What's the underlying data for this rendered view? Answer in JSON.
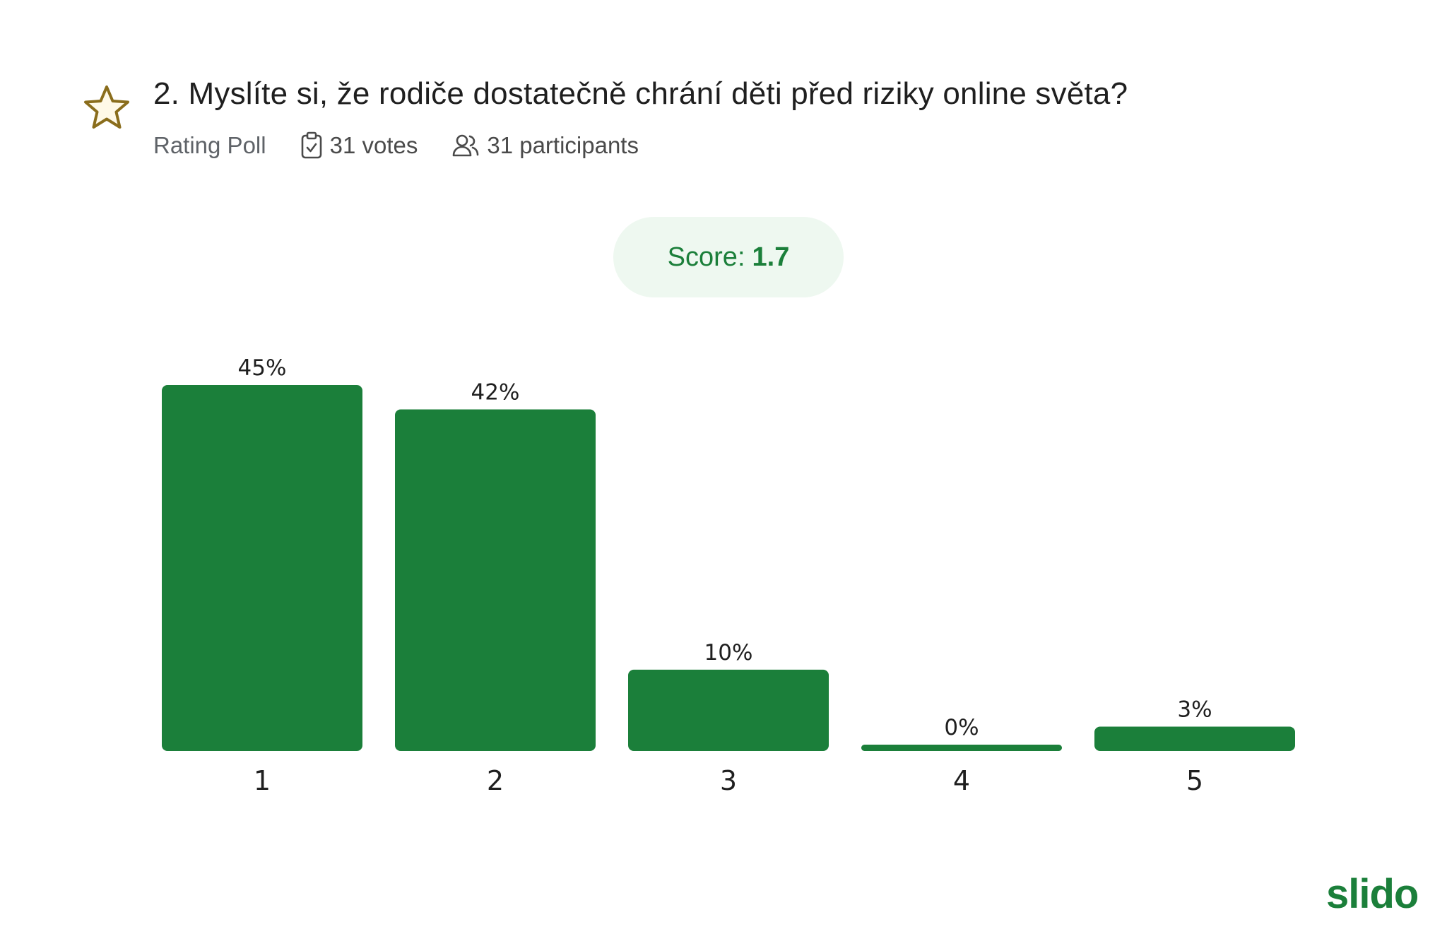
{
  "header": {
    "title": "2. Myslíte si, že rodiče dostatečně chrání děti před riziky online světa?",
    "poll_type": "Rating Poll",
    "votes": "31 votes",
    "participants": "31 participants",
    "icons": [
      "star-icon",
      "clipboard-check-icon",
      "users-icon"
    ]
  },
  "score": {
    "label": "Score:",
    "value": "1.7"
  },
  "logo": "slido",
  "colors": {
    "bar": "#1b7f3a",
    "accent": "#1b7f3a",
    "pill_bg": "#eef8f0",
    "star": "#8a6d1c"
  },
  "chart_data": {
    "type": "bar",
    "categories": [
      "1",
      "2",
      "3",
      "4",
      "5"
    ],
    "values": [
      45,
      42,
      10,
      0,
      3
    ],
    "value_labels": [
      "45%",
      "42%",
      "10%",
      "0%",
      "3%"
    ],
    "ylim": [
      0,
      45
    ],
    "grid": false,
    "legend": "none"
  }
}
